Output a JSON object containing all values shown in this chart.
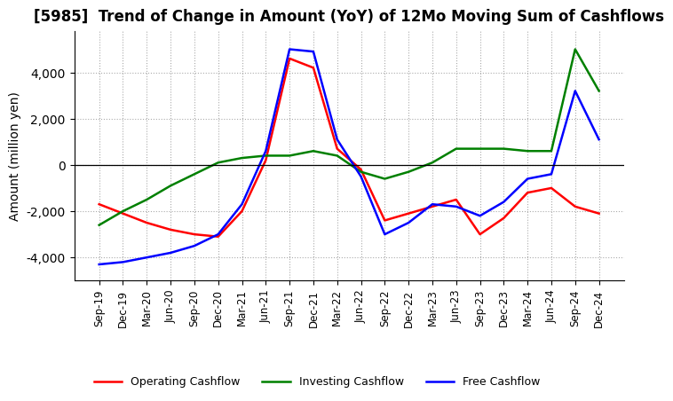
{
  "title": "[5985]  Trend of Change in Amount (YoY) of 12Mo Moving Sum of Cashflows",
  "ylabel": "Amount (million yen)",
  "x_labels": [
    "Sep-19",
    "Dec-19",
    "Mar-20",
    "Jun-20",
    "Sep-20",
    "Dec-20",
    "Mar-21",
    "Jun-21",
    "Sep-21",
    "Dec-21",
    "Mar-22",
    "Jun-22",
    "Sep-22",
    "Dec-22",
    "Mar-23",
    "Jun-23",
    "Sep-23",
    "Dec-23",
    "Mar-24",
    "Jun-24",
    "Sep-24",
    "Dec-24"
  ],
  "operating": [
    -1700,
    -2100,
    -2500,
    -2800,
    -3000,
    -3100,
    -2000,
    200,
    4600,
    4200,
    700,
    -200,
    -2400,
    -2100,
    -1800,
    -1500,
    -3000,
    -2300,
    -1200,
    -1000,
    -1800,
    -2100
  ],
  "investing": [
    -2600,
    -2000,
    -1500,
    -900,
    -400,
    100,
    300,
    400,
    400,
    600,
    400,
    -300,
    -600,
    -300,
    100,
    700,
    700,
    700,
    600,
    600,
    5000,
    3200
  ],
  "free": [
    -4300,
    -4200,
    -4000,
    -3800,
    -3500,
    -3000,
    -1700,
    600,
    5000,
    4900,
    1100,
    -500,
    -3000,
    -2500,
    -1700,
    -1800,
    -2200,
    -1600,
    -600,
    -400,
    3200,
    1100
  ],
  "op_color": "#ff0000",
  "inv_color": "#008000",
  "free_color": "#0000ff",
  "ylim": [
    -5000,
    5800
  ],
  "yticks": [
    -4000,
    -2000,
    0,
    2000,
    4000
  ],
  "grid_color": "#aaaaaa",
  "background": "#ffffff",
  "title_fontsize": 12,
  "label_fontsize": 10
}
